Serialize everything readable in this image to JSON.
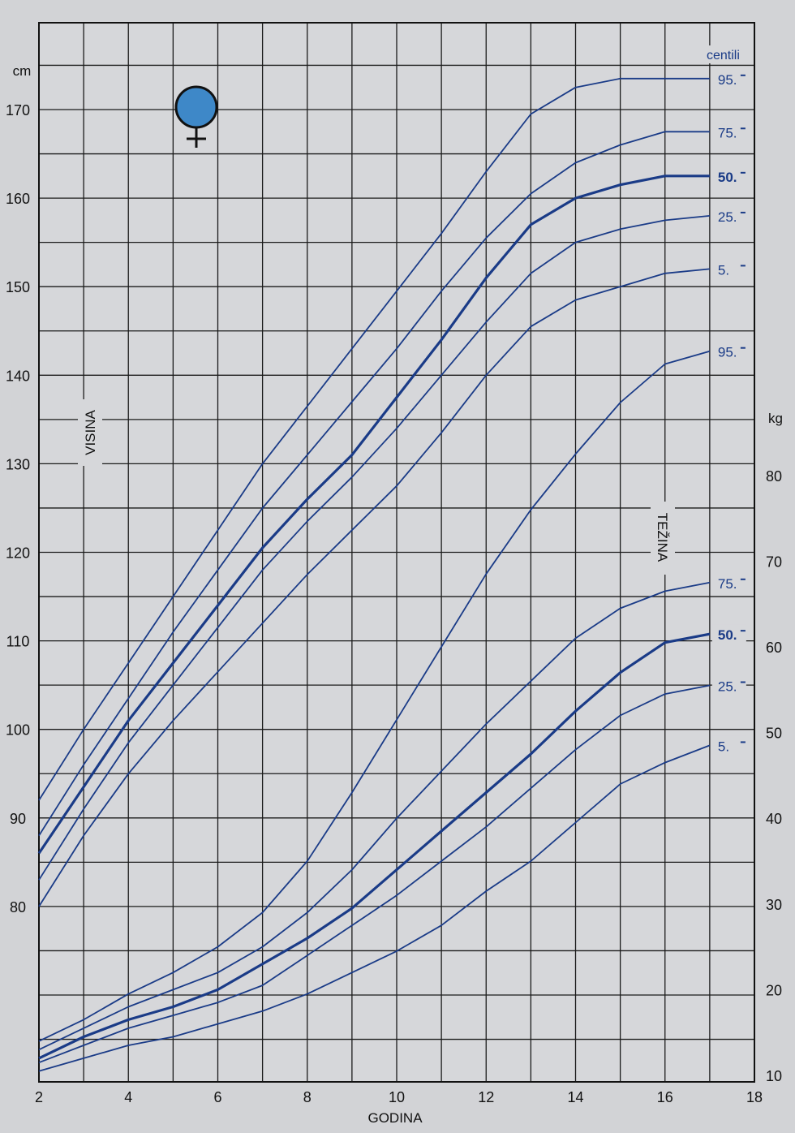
{
  "chart_data": {
    "type": "line",
    "title": "",
    "xlabel": "GODINA",
    "x_ticks": [
      2,
      4,
      6,
      8,
      10,
      12,
      14,
      16,
      18
    ],
    "xlim": [
      2,
      18
    ],
    "height_axis": {
      "unit": "cm",
      "label": "VISINA",
      "ticks": [
        80,
        90,
        100,
        110,
        120,
        130,
        140,
        150,
        160,
        170
      ]
    },
    "weight_axis": {
      "unit": "kg",
      "label": "TEŽINA",
      "ticks": [
        10,
        20,
        30,
        40,
        50,
        60,
        70,
        80
      ]
    },
    "percentile_label": "centili",
    "female_symbol_color": "#3e88c8",
    "line_color": "#1a3b87",
    "height_series": [
      {
        "name": "95.",
        "x": [
          2,
          3,
          4,
          5,
          6,
          7,
          8,
          9,
          10,
          11,
          12,
          13,
          14,
          15,
          16,
          17
        ],
        "y": [
          92,
          100,
          107.5,
          115,
          122.5,
          130,
          136.5,
          143,
          149.5,
          156,
          163,
          169.5,
          172.5,
          173.5,
          173.5,
          173.5
        ],
        "bold": false
      },
      {
        "name": "75.",
        "x": [
          2,
          3,
          4,
          5,
          6,
          7,
          8,
          9,
          10,
          11,
          12,
          13,
          14,
          15,
          16,
          17
        ],
        "y": [
          88,
          96,
          103.5,
          111,
          118,
          125,
          131,
          137,
          143,
          149.5,
          155.5,
          160.5,
          164,
          166,
          167.5,
          167.5
        ],
        "bold": false
      },
      {
        "name": "50.",
        "x": [
          2,
          3,
          4,
          5,
          6,
          7,
          8,
          9,
          10,
          11,
          12,
          13,
          14,
          15,
          16,
          17
        ],
        "y": [
          86,
          93.5,
          101,
          107.5,
          114,
          120.5,
          126,
          131,
          137.5,
          144,
          151,
          157,
          160,
          161.5,
          162.5,
          162.5
        ],
        "bold": true
      },
      {
        "name": "25.",
        "x": [
          2,
          3,
          4,
          5,
          6,
          7,
          8,
          9,
          10,
          11,
          12,
          13,
          14,
          15,
          16,
          17
        ],
        "y": [
          83,
          91,
          98.5,
          105,
          111.5,
          118,
          123.5,
          128.5,
          134,
          140,
          146,
          151.5,
          155,
          156.5,
          157.5,
          158
        ],
        "bold": false
      },
      {
        "name": "5.",
        "x": [
          2,
          3,
          4,
          5,
          6,
          7,
          8,
          9,
          10,
          11,
          12,
          13,
          14,
          15,
          16,
          17
        ],
        "y": [
          80,
          88,
          95,
          101,
          106.5,
          112,
          117.5,
          122.5,
          127.5,
          133.5,
          140,
          145.5,
          148.5,
          150,
          151.5,
          152
        ]
      }
    ],
    "weight_series": [
      {
        "name": "95.",
        "x": [
          2,
          3,
          4,
          5,
          6,
          7,
          8,
          9,
          10,
          11,
          12,
          13,
          14,
          15,
          16,
          17
        ],
        "y": [
          14,
          16.5,
          19.5,
          22,
          25,
          29,
          35,
          43,
          51.5,
          60,
          68.5,
          76,
          82.5,
          88.5,
          93,
          94.5
        ],
        "bold": false
      },
      {
        "name": "75.",
        "x": [
          2,
          3,
          4,
          5,
          6,
          7,
          8,
          9,
          10,
          11,
          12,
          13,
          14,
          15,
          16,
          17
        ],
        "y": [
          13,
          15.5,
          18,
          20,
          22,
          25,
          29,
          34,
          40,
          45.5,
          51,
          56,
          61,
          64.5,
          66.5,
          67.5
        ],
        "bold": false
      },
      {
        "name": "50.",
        "x": [
          2,
          3,
          4,
          5,
          6,
          7,
          8,
          9,
          10,
          11,
          12,
          13,
          14,
          15,
          16,
          17
        ],
        "y": [
          12,
          14.5,
          16.5,
          18,
          20,
          23,
          26,
          29.5,
          34,
          38.5,
          43,
          47.5,
          52.5,
          57,
          60.5,
          61.5
        ],
        "bold": true
      },
      {
        "name": "25.",
        "x": [
          2,
          3,
          4,
          5,
          6,
          7,
          8,
          9,
          10,
          11,
          12,
          13,
          14,
          15,
          16,
          17
        ],
        "y": [
          11.5,
          13.5,
          15.5,
          17,
          18.5,
          20.5,
          24,
          27.5,
          31,
          35,
          39,
          43.5,
          48,
          52,
          54.5,
          55.5
        ],
        "bold": false
      },
      {
        "name": "5.",
        "x": [
          2,
          3,
          4,
          5,
          6,
          7,
          8,
          9,
          10,
          11,
          12,
          13,
          14,
          15,
          16,
          17
        ],
        "y": [
          10.5,
          12,
          13.5,
          14.5,
          16,
          17.5,
          19.5,
          22,
          24.5,
          27.5,
          31.5,
          35,
          39.5,
          44,
          46.5,
          48.5
        ],
        "bold": false
      }
    ]
  }
}
